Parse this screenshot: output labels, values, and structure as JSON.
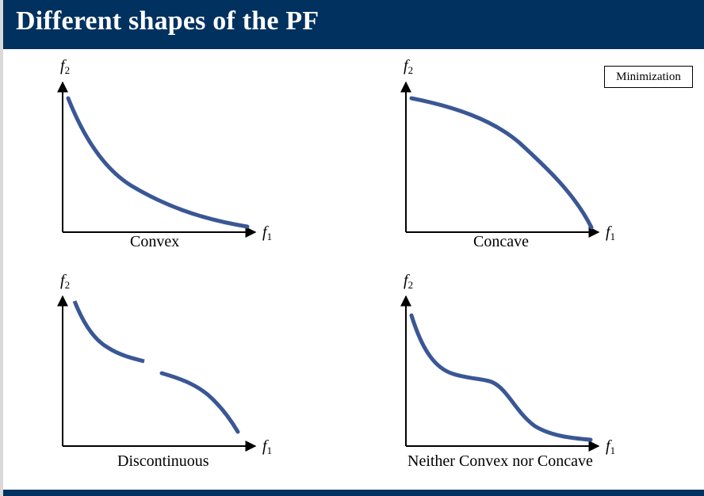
{
  "header": {
    "title": "Different shapes of the PF"
  },
  "badge": {
    "label": "Minimization"
  },
  "axis": {
    "x_var": "f",
    "x_sub": "1",
    "y_var": "f",
    "y_sub": "2"
  },
  "panels": [
    {
      "caption": "Convex"
    },
    {
      "caption": "Concave"
    },
    {
      "caption": "Discontinuous"
    },
    {
      "caption": "Neither Convex nor Concave"
    }
  ],
  "colors": {
    "header": "#00315f",
    "curve": "#3a5795",
    "axis": "#000000"
  }
}
